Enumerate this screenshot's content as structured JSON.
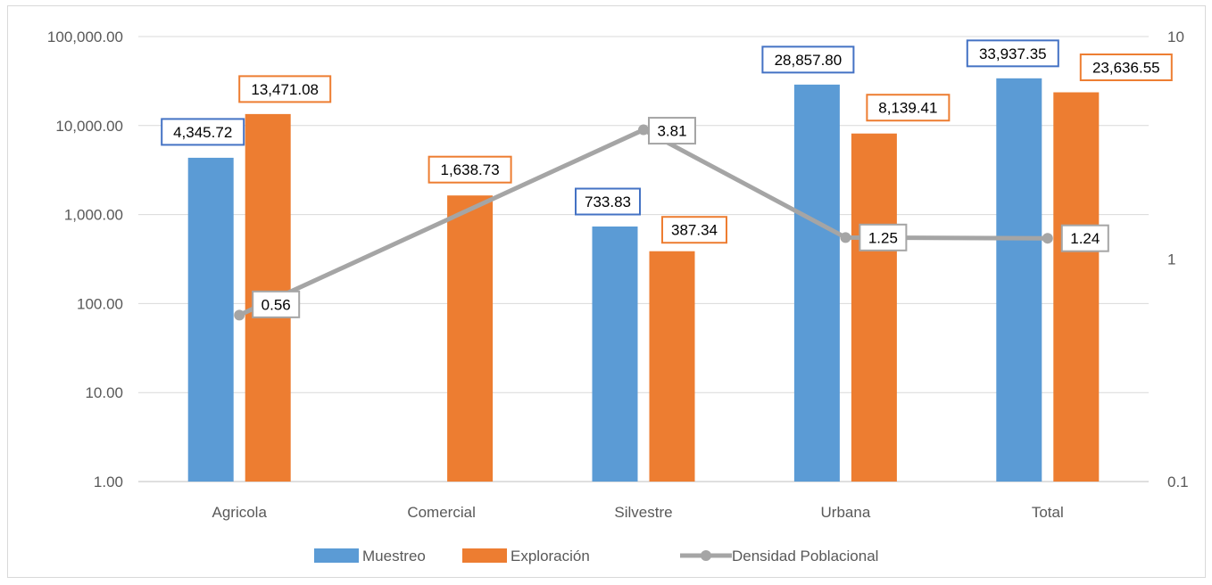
{
  "chart_data": {
    "type": "bar",
    "categories": [
      "Agricola",
      "Comercial",
      "Silvestre",
      "Urbana",
      "Total"
    ],
    "series": [
      {
        "name": "Muestreo",
        "kind": "bar",
        "axis": "left",
        "color": "#5b9bd5",
        "label_border": "#4472c4",
        "values": [
          4345.72,
          null,
          733.83,
          28857.8,
          33937.35
        ],
        "labels": [
          "4,345.72",
          "",
          "733.83",
          "28,857.80",
          "33,937.35"
        ]
      },
      {
        "name": "Exploración",
        "kind": "bar",
        "axis": "left",
        "color": "#ed7d31",
        "label_border": "#ed7d31",
        "values": [
          13471.08,
          1638.73,
          387.34,
          8139.41,
          23636.55
        ],
        "labels": [
          "13,471.08",
          "1,638.73",
          "387.34",
          "8,139.41",
          "23,636.55"
        ]
      },
      {
        "name": "Densidad Poblacional",
        "kind": "line",
        "axis": "right",
        "color": "#a5a5a5",
        "label_border": "#a5a5a5",
        "values": [
          0.56,
          null,
          3.81,
          1.25,
          1.24
        ],
        "labels": [
          "0.56",
          "",
          "3.81",
          "1.25",
          "1.24"
        ]
      }
    ],
    "y_left": {
      "scale": "log",
      "range": [
        1,
        100000
      ],
      "ticks": [
        "1.00",
        "10.00",
        "100.00",
        "1,000.00",
        "10,000.00",
        "100,000.00"
      ]
    },
    "y_right": {
      "scale": "log",
      "range": [
        0.1,
        10
      ],
      "ticks": [
        "0.1",
        "1",
        "10"
      ]
    },
    "grid": true,
    "legend": {
      "position": "bottom",
      "entries": [
        "Muestreo",
        "Exploración",
        "Densidad Poblacional"
      ]
    },
    "title": "",
    "xlabel": "",
    "ylabel": ""
  }
}
